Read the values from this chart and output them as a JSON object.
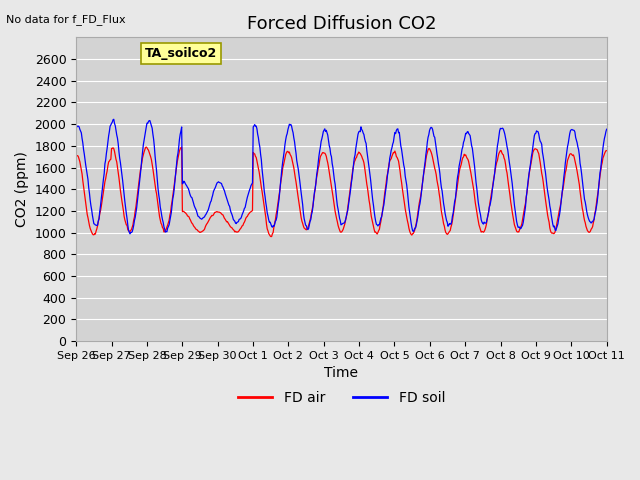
{
  "title": "Forced Diffusion CO2",
  "xlabel": "Time",
  "ylabel": "CO2 (ppm)",
  "top_left_text": "No data for f_FD_Flux",
  "annotation_box": "TA_soilco2",
  "ylim": [
    0,
    2800
  ],
  "yticks": [
    0,
    200,
    400,
    600,
    800,
    1000,
    1200,
    1400,
    1600,
    1800,
    2000,
    2200,
    2400,
    2600
  ],
  "xtick_labels": [
    "Sep 26",
    "Sep 27",
    "Sep 28",
    "Sep 29",
    "Sep 30",
    "Oct 1",
    "Oct 2",
    "Oct 3",
    "Oct 4",
    "Oct 5",
    "Oct 6",
    "Oct 7",
    "Oct 8",
    "Oct 9",
    "Oct 10",
    "Oct 11"
  ],
  "legend_labels": [
    "FD air",
    "FD soil"
  ],
  "line_color_air": "#ff0000",
  "line_color_soil": "#0000ff",
  "fig_bg_color": "#e8e8e8",
  "plot_bg_color": "#d3d3d3",
  "grid_color": "#ffffff",
  "annotation_box_bg": "#ffff99",
  "annotation_box_border": "#999900",
  "title_fontsize": 13,
  "axis_label_fontsize": 10,
  "tick_fontsize": 9,
  "legend_fontsize": 10
}
